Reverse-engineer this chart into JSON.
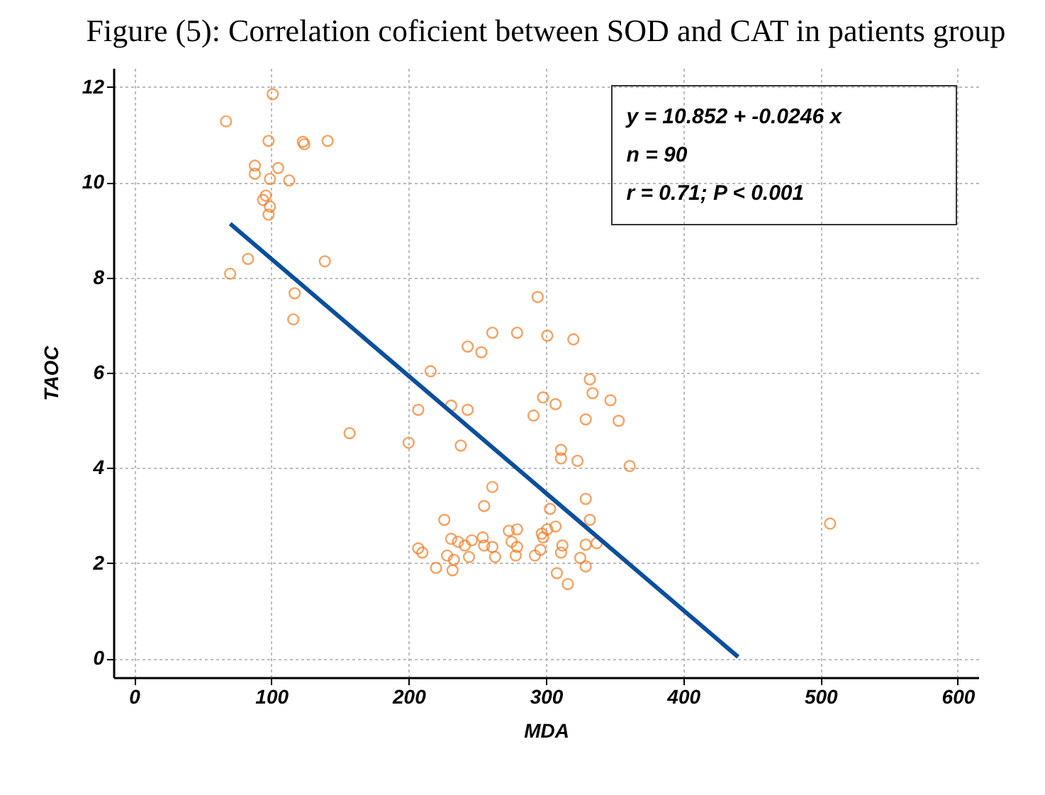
{
  "chart_data": {
    "type": "scatter",
    "title": "Figure (5): Correlation coficient between SOD and CAT in patients group",
    "xlabel": "MDA",
    "ylabel": "TAOC",
    "xlim": [
      -15,
      615
    ],
    "ylim": [
      -0.4,
      12.4
    ],
    "xticks": [
      0,
      100,
      200,
      300,
      400,
      500,
      600
    ],
    "yticks": [
      0,
      2,
      4,
      6,
      8,
      10,
      12
    ],
    "grid": true,
    "annotations": [
      "y = 10.852 + -0.0246 x",
      "n = 90",
      "r = 0.71; P < 0.001"
    ],
    "series": [
      {
        "marker": "circle",
        "color": "#f47a20",
        "x": [
          101,
          67,
          98,
          123,
          124,
          141,
          88,
          88,
          105,
          99,
          113,
          96,
          94,
          99,
          98,
          83,
          70,
          139,
          117,
          116,
          157,
          216,
          207,
          200,
          238,
          231,
          243,
          243,
          253,
          261,
          279,
          291,
          261,
          255,
          226,
          294,
          301,
          320,
          332,
          334,
          347,
          298,
          307,
          353,
          329,
          311,
          311,
          323,
          361,
          329,
          303,
          332,
          307,
          279,
          273,
          301,
          297,
          298,
          254,
          231,
          246,
          275,
          207,
          210,
          236,
          241,
          255,
          261,
          279,
          312,
          329,
          337,
          228,
          233,
          244,
          263,
          278,
          292,
          296,
          311,
          325,
          329,
          220,
          232,
          308,
          316,
          507
        ],
        "values": [
          11.85,
          11.28,
          10.87,
          10.85,
          10.8,
          10.87,
          10.35,
          10.18,
          10.3,
          10.07,
          10.04,
          9.72,
          9.63,
          9.49,
          9.32,
          8.39,
          8.08,
          8.34,
          7.67,
          7.12,
          4.73,
          6.03,
          5.22,
          4.53,
          4.47,
          5.31,
          5.22,
          6.55,
          6.43,
          6.84,
          6.84,
          5.1,
          3.6,
          3.2,
          2.91,
          7.59,
          6.78,
          6.7,
          5.86,
          5.57,
          5.42,
          5.48,
          5.34,
          4.99,
          5.02,
          4.38,
          4.2,
          4.15,
          4.04,
          3.35,
          3.14,
          2.91,
          2.77,
          2.71,
          2.68,
          2.71,
          2.62,
          2.54,
          2.54,
          2.51,
          2.48,
          2.45,
          2.31,
          2.22,
          2.45,
          2.37,
          2.37,
          2.34,
          2.34,
          2.37,
          2.39,
          2.42,
          2.16,
          2.07,
          2.13,
          2.13,
          2.16,
          2.16,
          2.28,
          2.22,
          2.11,
          1.93,
          1.9,
          1.85,
          1.79,
          1.56,
          2.83
        ]
      },
      {
        "type": "line",
        "marker": "none",
        "color": "#0b4f9c",
        "x": [
          70,
          440
        ],
        "values": [
          9.13,
          0.03
        ]
      }
    ]
  }
}
